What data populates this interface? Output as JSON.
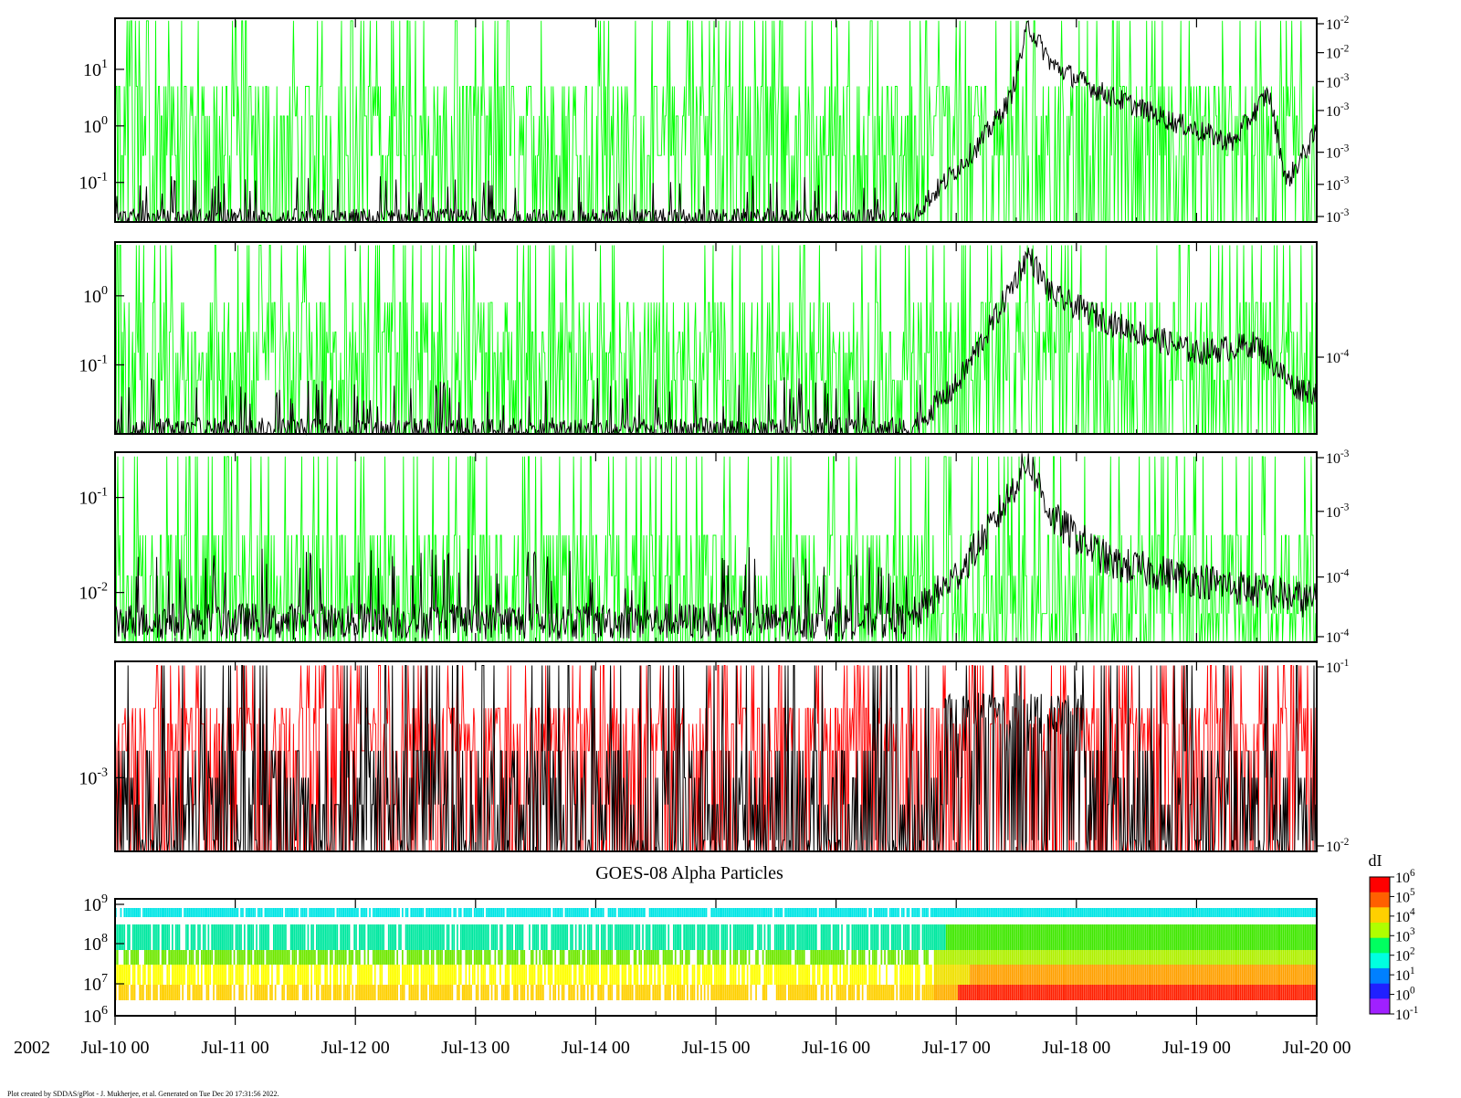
{
  "year_label": "2002",
  "spectrogram_title": "GOES-08 Alpha Particles",
  "colorbar_label": "dI",
  "footer": "Plot created by SDDAS/gPlot - J. Mukherjee, et al.  Generated on Tue Dec 20 17:31:56 2022.",
  "chart_data": [
    {
      "type": "line",
      "panel": 1,
      "y_scale": "log",
      "y_ticks_left": [
        {
          "mant": "10",
          "exp": "1",
          "value": 10
        },
        {
          "mant": "10",
          "exp": "0",
          "value": 1
        },
        {
          "mant": "10",
          "exp": "-1",
          "value": 0.1
        }
      ],
      "y_ticks_right": [
        {
          "mant": "10",
          "exp": "-2"
        },
        {
          "mant": "10",
          "exp": "-2"
        },
        {
          "mant": "10",
          "exp": "-3"
        },
        {
          "mant": "10",
          "exp": "-3"
        },
        {
          "mant": "10",
          "exp": "-3"
        },
        {
          "mant": "10",
          "exp": "-3"
        },
        {
          "mant": "10",
          "exp": "-3"
        }
      ],
      "ylim": [
        0.02,
        80
      ],
      "series": [
        {
          "color": "#00ff00",
          "levels": [
            0.3,
            1.5,
            5
          ],
          "rise": 0.0,
          "peak_day": 7.6
        },
        {
          "color": "#000000",
          "profile": [
            [
              0,
              0.022
            ],
            [
              6.6,
              0.022
            ],
            [
              6.9,
              0.1
            ],
            [
              7.2,
              0.5
            ],
            [
              7.45,
              3
            ],
            [
              7.6,
              60
            ],
            [
              7.8,
              12
            ],
            [
              8.2,
              4
            ],
            [
              8.8,
              1.2
            ],
            [
              9.3,
              0.5
            ],
            [
              9.6,
              4
            ],
            [
              9.75,
              0.1
            ],
            [
              10,
              0.8
            ]
          ]
        }
      ]
    },
    {
      "type": "line",
      "panel": 2,
      "y_scale": "log",
      "y_ticks_left": [
        {
          "mant": "10",
          "exp": "0",
          "value": 1
        },
        {
          "mant": "10",
          "exp": "-1",
          "value": 0.1
        }
      ],
      "y_ticks_right": [
        {
          "mant": "10",
          "exp": "-4"
        }
      ],
      "ylim": [
        0.01,
        6
      ],
      "series": [
        {
          "color": "#00ff00",
          "levels": [
            0.06,
            0.15,
            0.3,
            0.8
          ]
        },
        {
          "color": "#000000",
          "profile": [
            [
              0,
              0.011
            ],
            [
              6.6,
              0.011
            ],
            [
              7.0,
              0.05
            ],
            [
              7.3,
              0.4
            ],
            [
              7.6,
              4
            ],
            [
              7.8,
              1
            ],
            [
              8.3,
              0.4
            ],
            [
              9.0,
              0.15
            ],
            [
              9.5,
              0.2
            ],
            [
              9.8,
              0.05
            ],
            [
              10,
              0.04
            ]
          ]
        }
      ]
    },
    {
      "type": "line",
      "panel": 3,
      "y_scale": "log",
      "y_ticks_left": [
        {
          "mant": "10",
          "exp": "-1",
          "value": 0.1
        },
        {
          "mant": "10",
          "exp": "-2",
          "value": 0.01
        }
      ],
      "y_ticks_right": [
        {
          "mant": "10",
          "exp": "-3"
        },
        {
          "mant": "10",
          "exp": "-3"
        },
        {
          "mant": "10",
          "exp": "-4"
        },
        {
          "mant": "10",
          "exp": "-4"
        }
      ],
      "ylim": [
        0.003,
        0.3
      ],
      "series": [
        {
          "color": "#00ff00",
          "levels": [
            0.006,
            0.015,
            0.04
          ]
        },
        {
          "color": "#000000",
          "profile": [
            [
              0,
              0.005
            ],
            [
              6.6,
              0.005
            ],
            [
              7.0,
              0.015
            ],
            [
              7.3,
              0.05
            ],
            [
              7.6,
              0.25
            ],
            [
              7.8,
              0.06
            ],
            [
              8.3,
              0.02
            ],
            [
              10,
              0.008
            ]
          ]
        }
      ]
    },
    {
      "type": "line",
      "panel": 4,
      "y_scale": "log",
      "y_ticks_left": [
        {
          "mant": "10",
          "exp": "-3",
          "value": 0.001
        }
      ],
      "y_ticks_right": [
        {
          "mant": "10",
          "exp": "-1"
        },
        {
          "mant": "10",
          "exp": "-2"
        }
      ],
      "ylim": [
        0.00015,
        0.02
      ],
      "series": [
        {
          "color": "#ff0000",
          "levels": [
            0.002,
            0.004,
            0.006
          ]
        },
        {
          "color": "#000000",
          "levels": [
            0.0002,
            0.0005,
            0.001,
            0.002
          ]
        }
      ]
    },
    {
      "type": "heatmap",
      "panel": 5,
      "y_scale": "log",
      "y_ticks_left": [
        {
          "mant": "10",
          "exp": "9"
        },
        {
          "mant": "10",
          "exp": "8"
        },
        {
          "mant": "10",
          "exp": "7"
        },
        {
          "mant": "10",
          "exp": "6"
        }
      ],
      "colorbar_ticks": [
        {
          "mant": "10",
          "exp": "6"
        },
        {
          "mant": "10",
          "exp": "5"
        },
        {
          "mant": "10",
          "exp": "4"
        },
        {
          "mant": "10",
          "exp": "3"
        },
        {
          "mant": "10",
          "exp": "2"
        },
        {
          "mant": "10",
          "exp": "1"
        },
        {
          "mant": "10",
          "exp": "0"
        },
        {
          "mant": "10",
          "exp": "-1"
        }
      ],
      "channels": [
        {
          "name": "top",
          "color": "#00e5e5"
        },
        {
          "name": "ch2",
          "color": "#00e8a0"
        },
        {
          "name": "ch3",
          "color": "#70e800"
        },
        {
          "name": "ch4",
          "color": "#ffff00"
        },
        {
          "name": "ch5",
          "color": "#ffd000"
        }
      ]
    }
  ],
  "x_axis": {
    "ticks": [
      "Jul-10 00",
      "Jul-11 00",
      "Jul-12 00",
      "Jul-13 00",
      "Jul-14 00",
      "Jul-15 00",
      "Jul-16 00",
      "Jul-17 00",
      "Jul-18 00",
      "Jul-19 00",
      "Jul-20 00"
    ],
    "range_days": [
      0,
      10
    ]
  }
}
